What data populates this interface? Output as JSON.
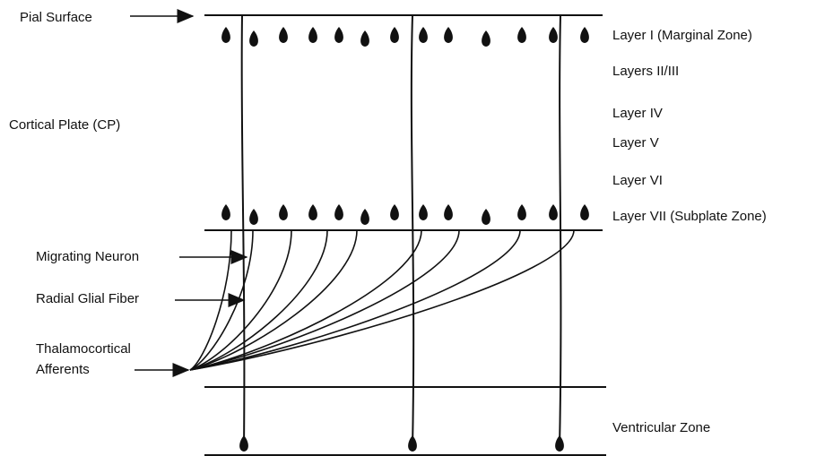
{
  "left_labels": {
    "pial": "Pial Surface",
    "cortical_plate": "Cortical Plate (CP)",
    "migrating": "Migrating Neuron",
    "radial": "Radial Glial Fiber",
    "thalamo": [
      "Thalamocortical",
      "Afferents"
    ]
  },
  "layer_labels": [
    "Layer I (Marginal Zone)",
    "Layers II/III",
    "Layer IV",
    "Layer V",
    "Layer VI",
    "Layer VII (Subplate Zone)",
    "Ventricular Zone"
  ]
}
